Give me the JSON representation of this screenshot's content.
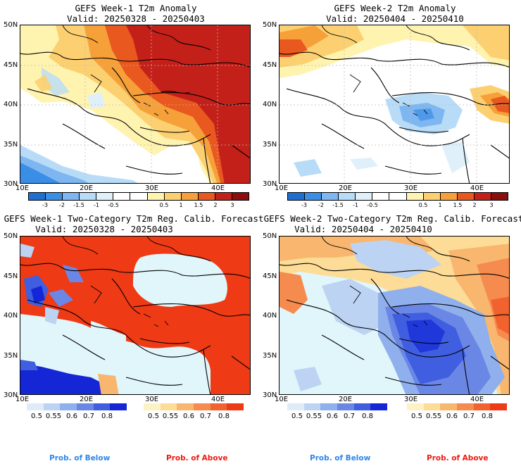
{
  "panels": [
    {
      "title": "GEFS Week-1 T2m Anomaly",
      "valid": "Valid: 20250328 - 20250403"
    },
    {
      "title": "GEFS Week-2 T2m Anomaly",
      "valid": "Valid: 20250404 - 20250410"
    },
    {
      "title": "GEFS Week-1 Two-Category T2m Reg. Calib. Forecast",
      "valid": "Valid: 20250328 - 20250403"
    },
    {
      "title": "GEFS Week-2 Two-Category T2m Reg. Calib. Forecast",
      "valid": "Valid: 20250404 - 20250410"
    }
  ],
  "axes": {
    "lat_labels": [
      "50N",
      "45N",
      "40N",
      "35N",
      "30N"
    ],
    "lon_labels": [
      "10E",
      "20E",
      "30E",
      "40E"
    ]
  },
  "anomaly_colorbar": {
    "labels": [
      "-3",
      "-2",
      "-1.5",
      "-1",
      "-0.5",
      "0.5",
      "1",
      "1.5",
      "2",
      "3"
    ],
    "colors": [
      "#1e6fd0",
      "#3b8ee6",
      "#7db6f0",
      "#b8dcf7",
      "#dff0fb",
      "#ffffff",
      "#ffffff",
      "#fff3b0",
      "#fcd070",
      "#f6a03a",
      "#e8581f",
      "#c4201a",
      "#8c0d0d"
    ]
  },
  "prob_below": {
    "labels": [
      "0.5",
      "0.55",
      "0.6",
      "0.7",
      "0.8"
    ],
    "colors": [
      "#e0ebf8",
      "#bdd3f3",
      "#8fb0ec",
      "#6b87e6",
      "#3f5fe0",
      "#1426d6"
    ],
    "caption": "Prob. of Below",
    "caption_color": "#2f86e8"
  },
  "prob_above": {
    "labels": [
      "0.5",
      "0.55",
      "0.6",
      "0.7",
      "0.8"
    ],
    "colors": [
      "#fdf1c6",
      "#fcdc97",
      "#f9b66f",
      "#f68b4f",
      "#f2622e",
      "#ee3a15"
    ],
    "caption": "Prob. of Above",
    "caption_color": "#ee1a10"
  }
}
